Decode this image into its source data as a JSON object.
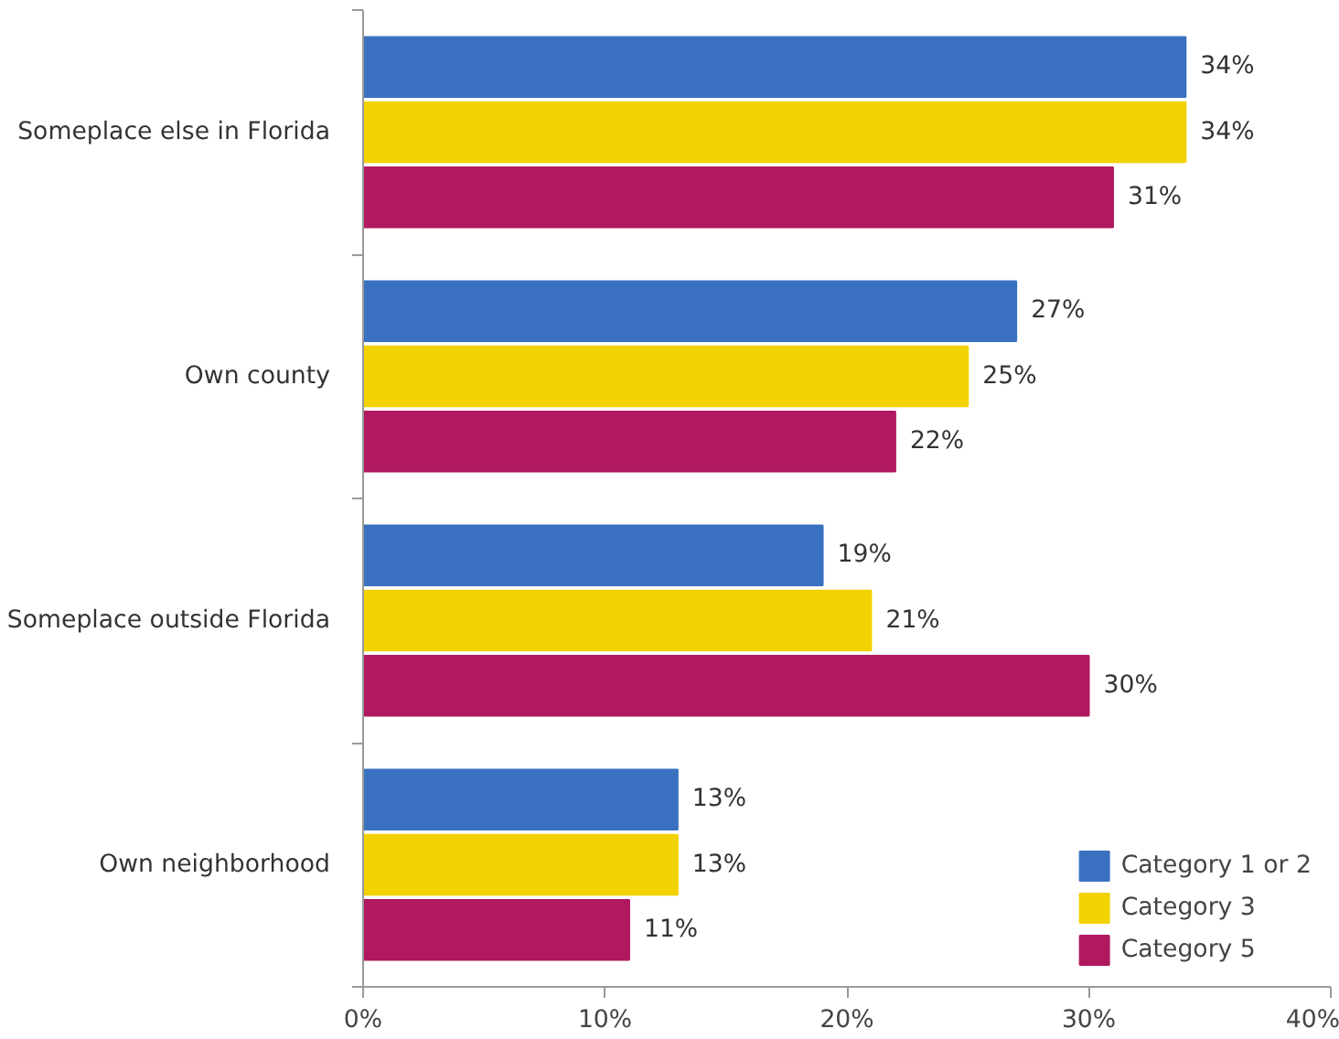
{
  "chart_data": {
    "type": "bar",
    "orientation": "horizontal",
    "categories": [
      "Someplace else in Florida",
      "Own county",
      "Someplace outside Florida",
      "Own neighborhood"
    ],
    "series": [
      {
        "name": "Category 1 or 2",
        "color": "#3a70c0",
        "values": [
          34,
          27,
          19,
          13
        ],
        "value_labels": [
          "34%",
          "27%",
          "19%",
          "13%"
        ]
      },
      {
        "name": "Category 3",
        "color": "#f2d200",
        "values": [
          34,
          25,
          21,
          13
        ],
        "value_labels": [
          "34%",
          "25%",
          "21%",
          "13%"
        ]
      },
      {
        "name": "Category 5",
        "color": "#b0185f",
        "values": [
          31,
          22,
          30,
          11
        ],
        "value_labels": [
          "31%",
          "22%",
          "30%",
          "11%"
        ]
      }
    ],
    "xlim": [
      0,
      40
    ],
    "xticks": [
      {
        "value": 0,
        "label": "0%"
      },
      {
        "value": 10,
        "label": "10%"
      },
      {
        "value": 20,
        "label": "20%"
      },
      {
        "value": 30,
        "label": "30%"
      },
      {
        "value": 40,
        "label": "40%"
      }
    ],
    "grid": false,
    "legend": "bottom right"
  }
}
